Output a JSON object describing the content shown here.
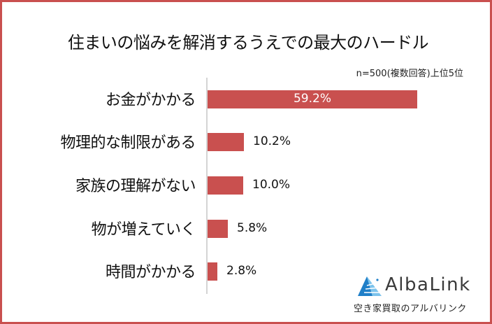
{
  "chart_data": {
    "type": "bar",
    "orientation": "horizontal",
    "title": "住まいの悩みを解消するうえでの最大のハードル",
    "subtitle": "n=500(複数回答)上位5位",
    "categories": [
      "お金がかかる",
      "物理的な制限がある",
      "家族の理解がない",
      "物が増えていく",
      "時間がかかる"
    ],
    "values": [
      59.2,
      10.2,
      10.0,
      5.8,
      2.8
    ],
    "value_labels": [
      "59.2%",
      "10.2%",
      "10.0%",
      "5.8%",
      "2.8%"
    ],
    "unit": "%",
    "xlabel": "",
    "ylabel": "",
    "grid": false,
    "legend": null,
    "bar_color": "#c9504f"
  },
  "header": {
    "title": "住まいの悩みを解消するうえでの最大のハードル",
    "note": "n=500(複数回答)上位5位"
  },
  "rows": [
    {
      "label": "お金がかかる",
      "value_label": "59.2%"
    },
    {
      "label": "物理的な制限がある",
      "value_label": "10.2%"
    },
    {
      "label": "家族の理解がない",
      "value_label": "10.0%"
    },
    {
      "label": "物が増えていく",
      "value_label": "5.8%"
    },
    {
      "label": "時間がかかる",
      "value_label": "2.8%"
    }
  ],
  "brand": {
    "name": "AlbaLink",
    "tagline": "空き家買取のアルバリンク",
    "icon": "triangle-logo-icon",
    "colors": {
      "primary": "#1f7fc8",
      "light": "#7cc3ec",
      "frame": "#c9504f"
    }
  }
}
